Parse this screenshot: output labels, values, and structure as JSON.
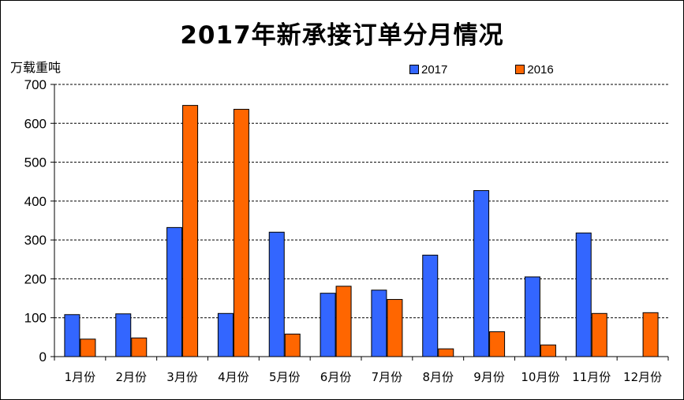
{
  "chart_data": {
    "type": "bar",
    "title": "2017年新承接订单分月情况",
    "ylabel": "万载重吨",
    "xlabel": "",
    "ylim": [
      0,
      700
    ],
    "yticks": [
      0,
      100,
      200,
      300,
      400,
      500,
      600,
      700
    ],
    "grid": "horizontal-dashed",
    "legend_position": "top-right",
    "categories": [
      "1月份",
      "2月份",
      "3月份",
      "4月份",
      "5月份",
      "6月份",
      "7月份",
      "8月份",
      "9月份",
      "10月份",
      "11月份",
      "12月份"
    ],
    "series": [
      {
        "name": "2017",
        "color": "#3366FF",
        "values": [
          108,
          110,
          332,
          111,
          320,
          163,
          171,
          261,
          427,
          205,
          318,
          null
        ]
      },
      {
        "name": "2016",
        "color": "#FF6600",
        "values": [
          45,
          48,
          646,
          636,
          58,
          181,
          147,
          20,
          64,
          30,
          111,
          113
        ]
      }
    ]
  }
}
